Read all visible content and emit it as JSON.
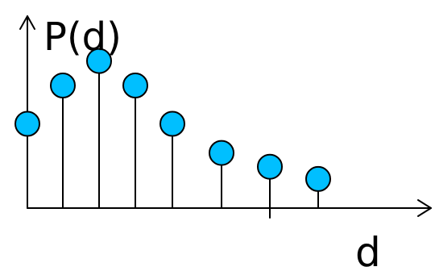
{
  "chart_data": {
    "type": "scatter",
    "style": "stem",
    "xlabel": "d",
    "ylabel": "P(d)",
    "x": [
      1,
      2,
      3,
      4,
      5,
      6,
      7,
      8
    ],
    "y": [
      0.55,
      0.8,
      0.96,
      0.8,
      0.55,
      0.36,
      0.27,
      0.19
    ],
    "grid": false,
    "marker_color": "#00BFFF",
    "marker_edge_color": "#000000",
    "axis_color": "#000000"
  }
}
